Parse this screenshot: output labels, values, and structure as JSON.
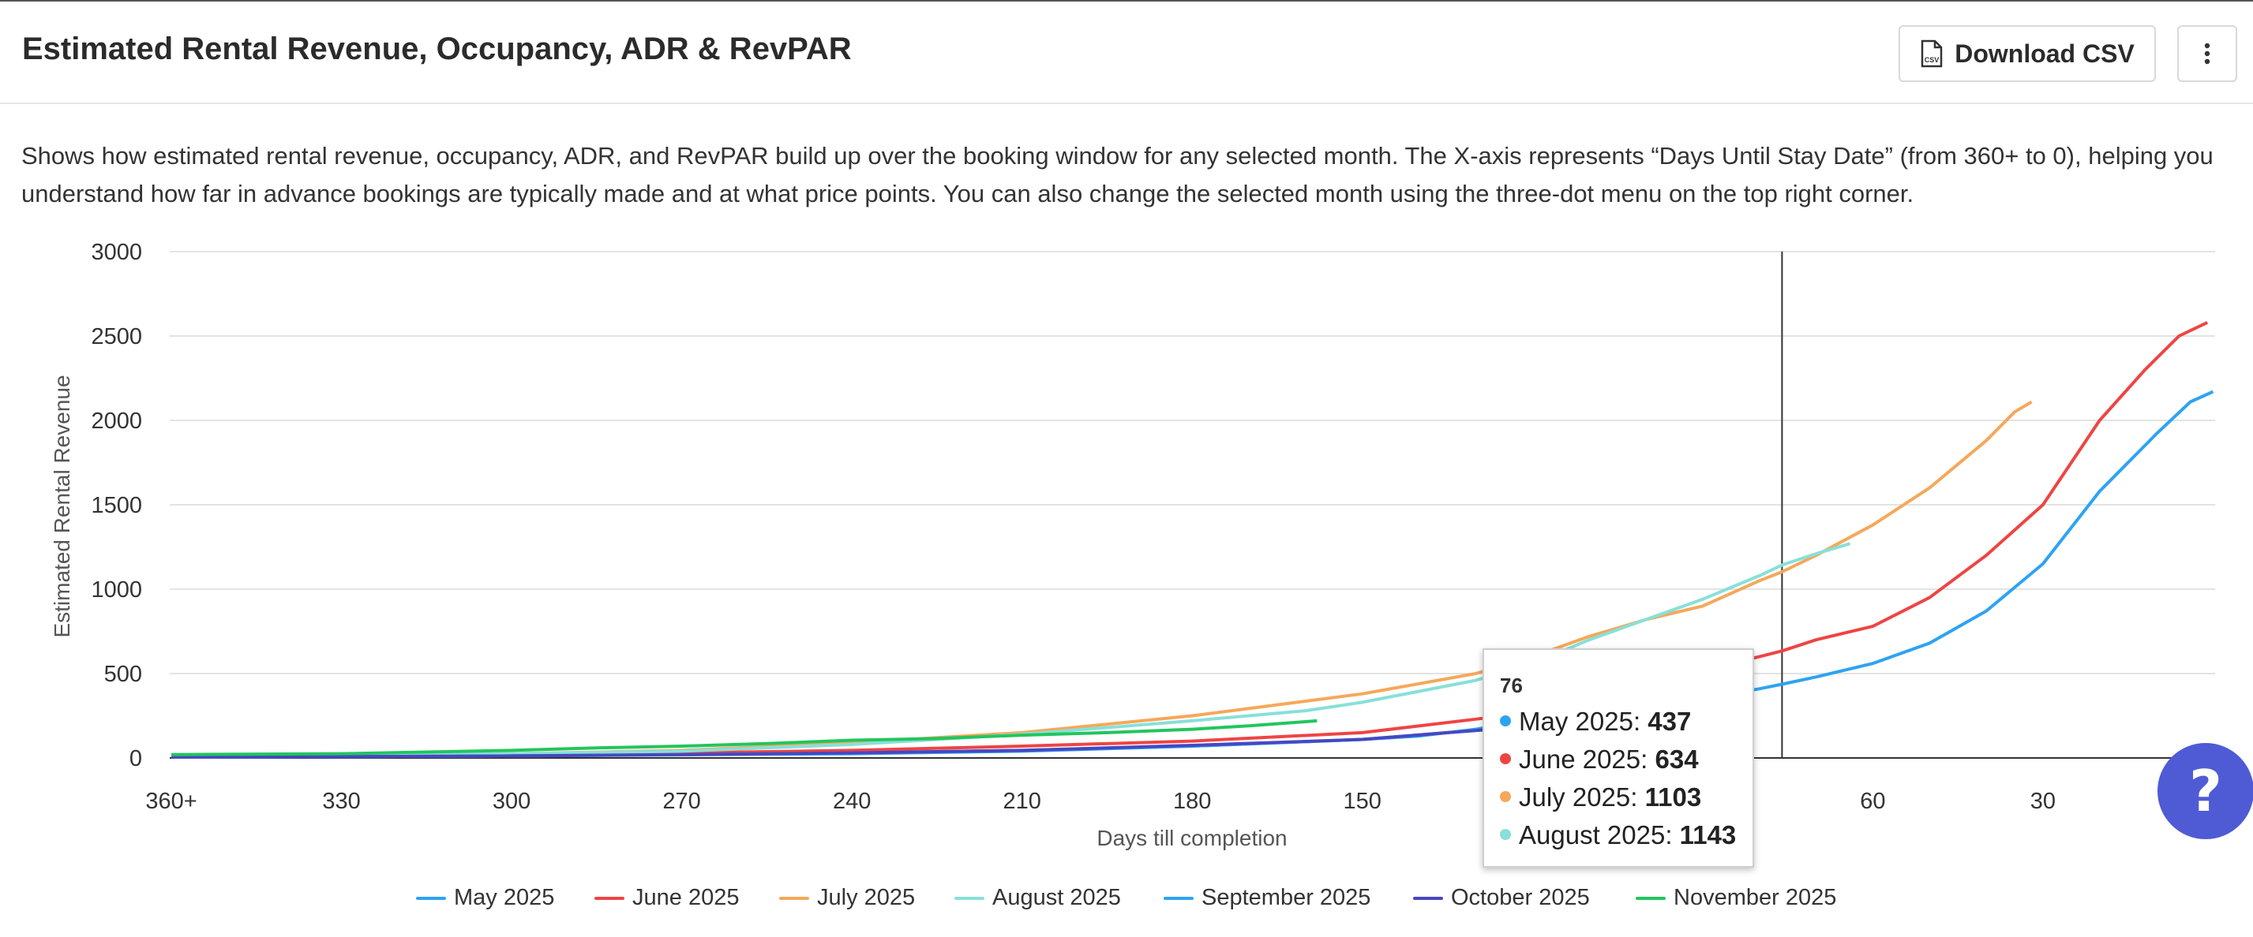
{
  "header": {
    "title": "Estimated Rental Revenue, Occupancy, ADR & RevPAR",
    "download_label": "Download CSV",
    "csv_icon": "csv-file-icon",
    "menu_icon": "three-dot-vertical-icon"
  },
  "description": "Shows how estimated rental revenue, occupancy, ADR, and RevPAR build up over the booking window for any selected month. The X-axis represents “Days Until Stay Date” (from 360+ to 0), helping you understand how far in advance bookings are typically made and at what price points. You can also change the selected month using the three-dot menu on the top right corner.",
  "tooltip": {
    "header": "76",
    "rows": [
      {
        "label": "May 2025",
        "value": "437",
        "color": "#2ea3f2"
      },
      {
        "label": "June 2025",
        "value": "634",
        "color": "#ef4444"
      },
      {
        "label": "July 2025",
        "value": "1103",
        "color": "#f5a85a"
      },
      {
        "label": "August 2025",
        "value": "1143",
        "color": "#88e0d8"
      }
    ]
  },
  "help_icon": "question-mark-icon",
  "chart_data": {
    "type": "line",
    "xlabel": "Days till completion",
    "ylabel": "Estimated Rental Revenue",
    "x_direction": "reversed",
    "xlim": [
      360,
      0
    ],
    "ylim": [
      0,
      3000
    ],
    "y_ticks": [
      "0",
      "500",
      "1000",
      "1500",
      "2000",
      "2500",
      "3000"
    ],
    "x_ticks": [
      {
        "value": 360,
        "label": "360+"
      },
      {
        "value": 330,
        "label": "330"
      },
      {
        "value": 300,
        "label": "300"
      },
      {
        "value": 270,
        "label": "270"
      },
      {
        "value": 240,
        "label": "240"
      },
      {
        "value": 210,
        "label": "210"
      },
      {
        "value": 180,
        "label": "180"
      },
      {
        "value": 150,
        "label": "150"
      },
      {
        "value": 120,
        "label": "120"
      },
      {
        "value": 90,
        "label": "90"
      },
      {
        "value": 60,
        "label": "60"
      },
      {
        "value": 30,
        "label": "30"
      }
    ],
    "grid": true,
    "legend_position": "bottom",
    "crosshair_x": 76,
    "series": [
      {
        "name": "May 2025",
        "color": "#2ea3f2",
        "points": [
          [
            360,
            5
          ],
          [
            330,
            8
          ],
          [
            300,
            12
          ],
          [
            270,
            20
          ],
          [
            240,
            30
          ],
          [
            210,
            45
          ],
          [
            180,
            70
          ],
          [
            150,
            110
          ],
          [
            120,
            190
          ],
          [
            110,
            230
          ],
          [
            100,
            290
          ],
          [
            90,
            350
          ],
          [
            80,
            410
          ],
          [
            76,
            437
          ],
          [
            70,
            480
          ],
          [
            60,
            560
          ],
          [
            50,
            680
          ],
          [
            40,
            870
          ],
          [
            30,
            1150
          ],
          [
            20,
            1580
          ],
          [
            10,
            1920
          ],
          [
            4,
            2110
          ],
          [
            0,
            2170
          ]
        ]
      },
      {
        "name": "June 2025",
        "color": "#ef4444",
        "points": [
          [
            360,
            5
          ],
          [
            330,
            10
          ],
          [
            300,
            18
          ],
          [
            270,
            30
          ],
          [
            240,
            45
          ],
          [
            210,
            70
          ],
          [
            180,
            100
          ],
          [
            150,
            150
          ],
          [
            130,
            230
          ],
          [
            120,
            270
          ],
          [
            110,
            330
          ],
          [
            100,
            420
          ],
          [
            90,
            520
          ],
          [
            80,
            600
          ],
          [
            76,
            634
          ],
          [
            70,
            700
          ],
          [
            60,
            780
          ],
          [
            50,
            950
          ],
          [
            40,
            1200
          ],
          [
            30,
            1500
          ],
          [
            20,
            2000
          ],
          [
            12,
            2300
          ],
          [
            6,
            2500
          ],
          [
            1,
            2580
          ]
        ]
      },
      {
        "name": "July 2025",
        "color": "#f5a85a",
        "points": [
          [
            360,
            10
          ],
          [
            330,
            15
          ],
          [
            300,
            25
          ],
          [
            270,
            45
          ],
          [
            240,
            90
          ],
          [
            210,
            150
          ],
          [
            180,
            250
          ],
          [
            150,
            380
          ],
          [
            130,
            500
          ],
          [
            120,
            600
          ],
          [
            110,
            720
          ],
          [
            100,
            820
          ],
          [
            90,
            900
          ],
          [
            80,
            1050
          ],
          [
            76,
            1103
          ],
          [
            70,
            1200
          ],
          [
            60,
            1380
          ],
          [
            50,
            1600
          ],
          [
            40,
            1880
          ],
          [
            35,
            2050
          ],
          [
            32,
            2110
          ]
        ]
      },
      {
        "name": "August 2025",
        "color": "#88e0d8",
        "points": [
          [
            360,
            10
          ],
          [
            330,
            15
          ],
          [
            300,
            25
          ],
          [
            270,
            40
          ],
          [
            240,
            80
          ],
          [
            210,
            140
          ],
          [
            180,
            220
          ],
          [
            160,
            280
          ],
          [
            150,
            330
          ],
          [
            130,
            460
          ],
          [
            120,
            560
          ],
          [
            110,
            700
          ],
          [
            100,
            820
          ],
          [
            90,
            940
          ],
          [
            80,
            1080
          ],
          [
            76,
            1143
          ],
          [
            70,
            1210
          ],
          [
            64,
            1270
          ]
        ]
      },
      {
        "name": "September 2025",
        "color": "#2ea3f2",
        "points": [
          [
            360,
            5
          ],
          [
            330,
            8
          ],
          [
            300,
            12
          ],
          [
            270,
            18
          ],
          [
            240,
            25
          ],
          [
            210,
            40
          ],
          [
            180,
            70
          ],
          [
            150,
            110
          ],
          [
            140,
            130
          ],
          [
            130,
            170
          ],
          [
            125,
            200
          ],
          [
            120,
            230
          ]
        ]
      },
      {
        "name": "October 2025",
        "color": "#4747c2",
        "points": [
          [
            360,
            5
          ],
          [
            330,
            8
          ],
          [
            300,
            12
          ],
          [
            270,
            20
          ],
          [
            240,
            30
          ],
          [
            210,
            45
          ],
          [
            180,
            75
          ],
          [
            150,
            110
          ],
          [
            135,
            150
          ],
          [
            125,
            175
          ],
          [
            120,
            190
          ]
        ]
      },
      {
        "name": "November 2025",
        "color": "#22c55e",
        "points": [
          [
            360,
            20
          ],
          [
            330,
            25
          ],
          [
            315,
            35
          ],
          [
            300,
            45
          ],
          [
            285,
            60
          ],
          [
            270,
            70
          ],
          [
            255,
            85
          ],
          [
            240,
            105
          ],
          [
            225,
            115
          ],
          [
            210,
            135
          ],
          [
            195,
            150
          ],
          [
            180,
            170
          ],
          [
            170,
            190
          ],
          [
            160,
            215
          ],
          [
            158,
            220
          ]
        ]
      }
    ]
  }
}
